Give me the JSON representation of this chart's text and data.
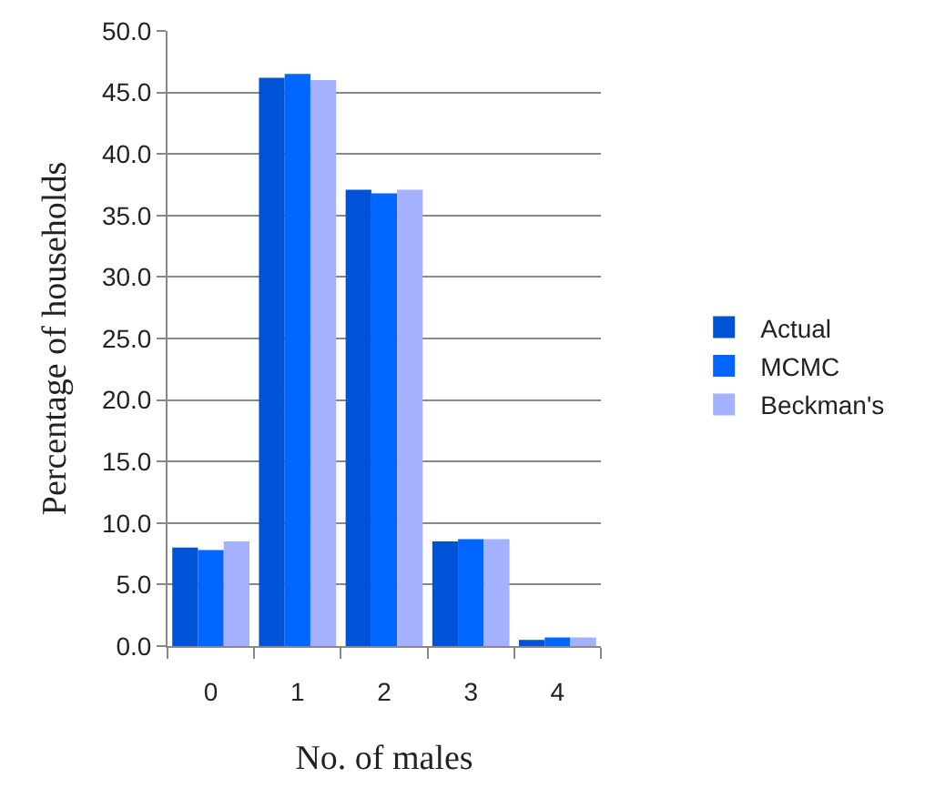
{
  "chart_data": {
    "type": "bar",
    "xlabel": "No. of males",
    "ylabel": "Percentage of households",
    "categories": [
      "0",
      "1",
      "2",
      "3",
      "4"
    ],
    "series": [
      {
        "name": "Actual",
        "color": "#0052d6",
        "values": [
          8.0,
          46.2,
          37.1,
          8.5,
          0.5
        ]
      },
      {
        "name": "MCMC",
        "color": "#0066ff",
        "values": [
          7.8,
          46.5,
          36.8,
          8.7,
          0.7
        ]
      },
      {
        "name": "Beckman's",
        "color": "#a3b1ff",
        "values": [
          8.5,
          46.0,
          37.1,
          8.7,
          0.7
        ]
      }
    ],
    "ylim": [
      0,
      50
    ],
    "yticks": [
      {
        "value": 0,
        "label": "0.0"
      },
      {
        "value": 5,
        "label": "5.0"
      },
      {
        "value": 10,
        "label": "10.0"
      },
      {
        "value": 15,
        "label": "15.0"
      },
      {
        "value": 20,
        "label": "20.0"
      },
      {
        "value": 25,
        "label": "25.0"
      },
      {
        "value": 30,
        "label": "30.0"
      },
      {
        "value": 35,
        "label": "35.0"
      },
      {
        "value": 40,
        "label": "40.0"
      },
      {
        "value": 45,
        "label": "45.0"
      },
      {
        "value": 50,
        "label": "50.0"
      }
    ],
    "grid": "y",
    "legend": "right"
  }
}
